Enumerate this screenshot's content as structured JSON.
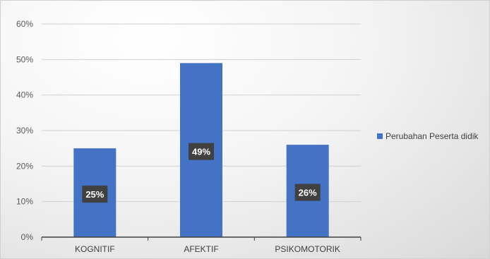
{
  "chart_data": {
    "type": "bar",
    "categories": [
      "KOGNITIF",
      "AFEKTIF",
      "PSIKOMOTORIK"
    ],
    "series": [
      {
        "name": "Perubahan Peserta didik",
        "values": [
          25,
          49,
          26
        ],
        "color": "#4472c4"
      }
    ],
    "data_labels": [
      "25%",
      "49%",
      "26%"
    ],
    "y_ticks": [
      "0%",
      "10%",
      "20%",
      "30%",
      "40%",
      "50%",
      "60%"
    ],
    "ylim": [
      0,
      60
    ],
    "title": "",
    "xlabel": "",
    "ylabel": "",
    "grid": true,
    "legend_position": "right"
  }
}
